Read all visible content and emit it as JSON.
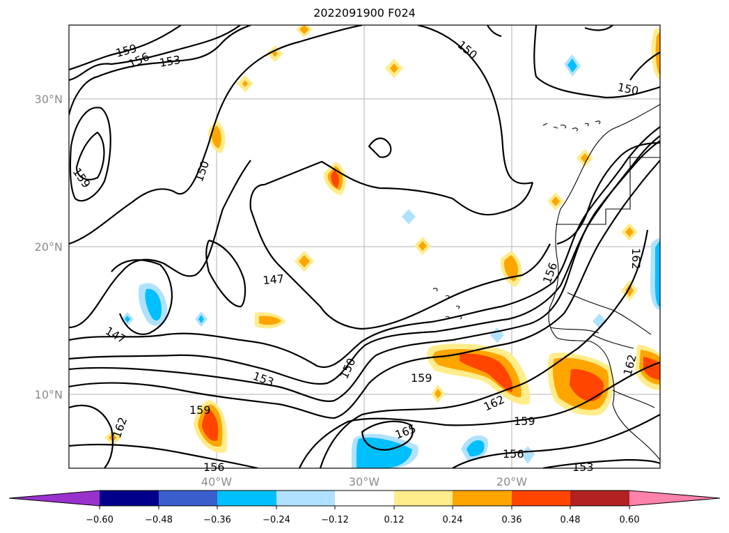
{
  "title": "2022091900 F024",
  "map": {
    "lon_range": [
      -50,
      -10
    ],
    "lat_range": [
      5,
      35
    ],
    "grid": true,
    "lat_ticks": [
      {
        "value": 30,
        "label": "30°N"
      },
      {
        "value": 20,
        "label": "20°N"
      },
      {
        "value": 10,
        "label": "10°N"
      }
    ],
    "lon_ticks": [
      {
        "value": -40,
        "label": "40°W"
      },
      {
        "value": -30,
        "label": "30°W"
      },
      {
        "value": -20,
        "label": "20°W"
      }
    ]
  },
  "contour_labels": [
    "159",
    "156",
    "153",
    "150",
    "150",
    "159",
    "150",
    "147",
    "147",
    "153",
    "150",
    "159",
    "159",
    "162",
    "165",
    "162",
    "159",
    "156",
    "156",
    "153",
    "162",
    "156",
    "162",
    "16"
  ],
  "colorbar": {
    "colors": [
      "#9932cc",
      "#00008b",
      "#3a5fcd",
      "#00bfff",
      "#b0e2ff",
      "#ffffff",
      "#ffec8b",
      "#ffa500",
      "#ff4500",
      "#b22222",
      "#ff82ab"
    ],
    "labels": [
      "−0.60",
      "−0.48",
      "−0.36",
      "−0.24",
      "−0.12",
      "0.12",
      "0.24",
      "0.36",
      "0.48",
      "0.60"
    ]
  }
}
